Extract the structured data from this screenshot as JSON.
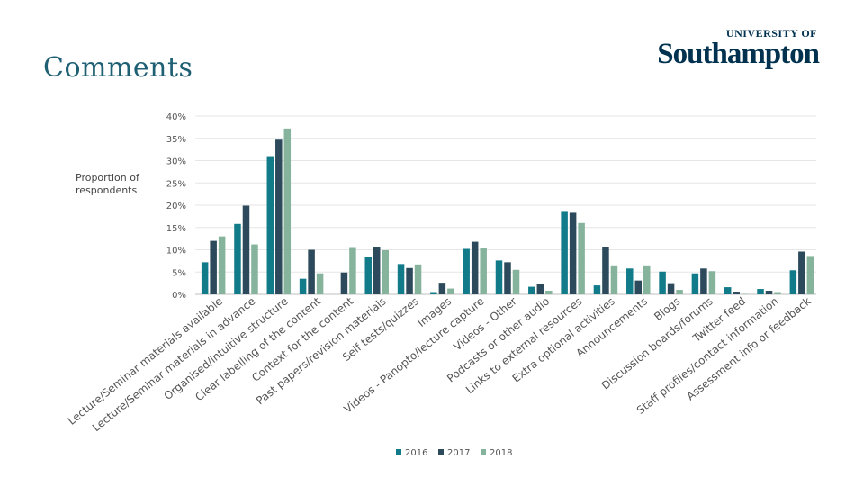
{
  "slide": {
    "title": "Comments",
    "logo_top": "UNIVERSITY OF",
    "logo_main": "Southampton",
    "y_axis_label_line1": "Proportion of",
    "y_axis_label_line2": "respondents"
  },
  "chart_data": {
    "type": "bar",
    "title": "",
    "xlabel": "",
    "ylabel": "Proportion of respondents",
    "ylim": [
      0,
      40
    ],
    "yticks": [
      "0%",
      "5%",
      "10%",
      "15%",
      "20%",
      "25%",
      "30%",
      "35%",
      "40%"
    ],
    "grid": true,
    "legend_position": "bottom",
    "categories": [
      "Lecture/Seminar materials available",
      "Lecture/Seminar materials in advance",
      "Organised/intuitive structure",
      "Clear labelling of the content",
      "Context for the content",
      "Past papers/revision materials",
      "Self tests/quizzes",
      "Images",
      "Videos - Panopto/lecture capture",
      "Videos - Other",
      "Podcasts or other audio",
      "Links to external resources",
      "Extra optional activities",
      "Announcements",
      "Blogs",
      "Discussion boards/forums",
      "Twitter feed",
      "Staff profiles/contact information",
      "Assessment info or feedback"
    ],
    "series": [
      {
        "name": "2016",
        "color": "#127b8a",
        "values": [
          7.2,
          15.8,
          31.0,
          3.5,
          0.0,
          8.4,
          6.8,
          0.5,
          10.2,
          7.6,
          1.7,
          18.5,
          2.0,
          5.8,
          5.1,
          4.7,
          1.6,
          1.2,
          5.4
        ]
      },
      {
        "name": "2017",
        "color": "#2c4a5c",
        "values": [
          12.0,
          19.9,
          34.7,
          10.0,
          4.9,
          10.5,
          5.9,
          2.6,
          11.8,
          7.2,
          2.3,
          18.3,
          10.6,
          3.1,
          2.5,
          5.8,
          0.6,
          0.8,
          9.6
        ]
      },
      {
        "name": "2018",
        "color": "#86b39c",
        "values": [
          13.0,
          11.2,
          37.2,
          4.7,
          10.4,
          9.9,
          6.7,
          1.3,
          10.3,
          5.5,
          0.8,
          16.0,
          6.5,
          6.5,
          1.0,
          5.2,
          0.1,
          0.5,
          8.6
        ]
      }
    ]
  }
}
